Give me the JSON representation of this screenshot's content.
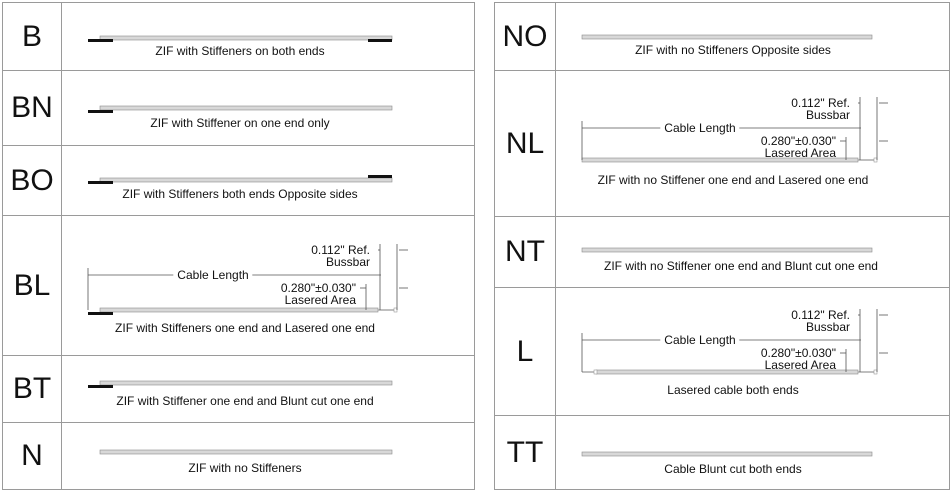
{
  "left_table": [
    {
      "code": "B",
      "caption": "ZIF with Stiffeners on both ends"
    },
    {
      "code": "BN",
      "caption": "ZIF with Stiffener on one end only"
    },
    {
      "code": "BO",
      "caption": "ZIF with Stiffeners both ends Opposite sides"
    },
    {
      "code": "BL",
      "caption": "ZIF with Stiffeners one end and Lasered one end"
    },
    {
      "code": "BT",
      "caption": "ZIF with Stiffener one end and Blunt cut one end"
    },
    {
      "code": "N",
      "caption": "ZIF with no Stiffeners"
    }
  ],
  "right_table": [
    {
      "code": "NO",
      "caption": "ZIF with no Stiffeners Opposite sides"
    },
    {
      "code": "NL",
      "caption": "ZIF with no Stiffener one end and Lasered one end"
    },
    {
      "code": "NT",
      "caption": "ZIF with no Stiffener one end and Blunt cut one end"
    },
    {
      "code": "L",
      "caption": "Lasered cable both ends"
    },
    {
      "code": "TT",
      "caption": "Cable Blunt cut both ends"
    }
  ],
  "dimensions": {
    "bussbar_value": "0.112\" Ref.",
    "bussbar_label": "Bussbar",
    "cable_length": "Cable Length",
    "lasered_value": "0.280\"±0.030\"",
    "lasered_label": "Lasered Area"
  },
  "colors": {
    "cable": "#d8d8d8",
    "cable_edge": "#8a8a8a",
    "stiffener": "#111111",
    "border": "#9a9a9a"
  }
}
